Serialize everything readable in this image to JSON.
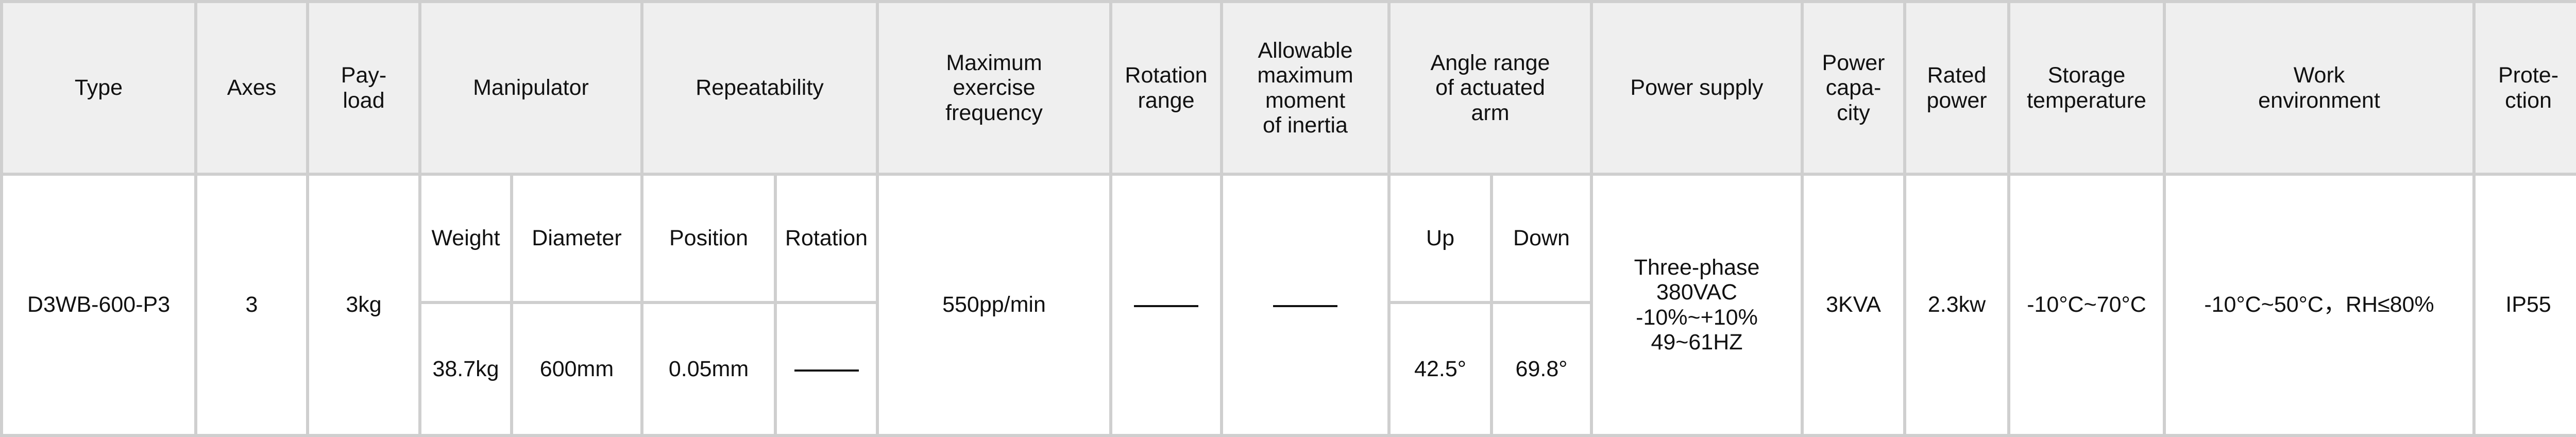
{
  "headers": {
    "type": "Type",
    "axes": "Axes",
    "payload": "Pay-\nload",
    "manipulator": "Manipulator",
    "repeatability": "Repeatability",
    "max_freq": "Maximum\nexercise\nfrequency",
    "rotation_range": "Rotation\nrange",
    "inertia": "Allowable\nmaximum\nmoment\nof inertia",
    "angle_range": "Angle range\nof actuated\narm",
    "power_supply": "Power supply",
    "power_capacity": "Power\ncapa-\ncity",
    "rated_power": "Rated\npower",
    "storage_temp": "Storage\ntemperature",
    "work_env": "Work\nenvironment",
    "protection": "Prote-\nction"
  },
  "subheaders": {
    "weight": "Weight",
    "diameter": "Diameter",
    "position": "Position",
    "rotation": "Rotation",
    "up": "Up",
    "down": "Down"
  },
  "row": {
    "type": "D3WB-600-P3",
    "axes": "3",
    "payload": "3kg",
    "weight": "38.7kg",
    "diameter": "600mm",
    "position": "0.05mm",
    "rotation": "——",
    "max_freq": "550pp/min",
    "rotation_range": "——",
    "inertia": "——",
    "up": "42.5°",
    "down": "69.8°",
    "power_supply": "Three-phase\n380VAC\n-10%~+10%\n49~61HZ",
    "power_capacity": "3KVA",
    "rated_power": "2.3kw",
    "storage_temp": "-10°C~70°C",
    "work_env": "-10°C~50°C，RH≤80%",
    "protection": "IP55"
  },
  "colors": {
    "header_bg": "#efefef",
    "border": "#cfcfcf"
  }
}
